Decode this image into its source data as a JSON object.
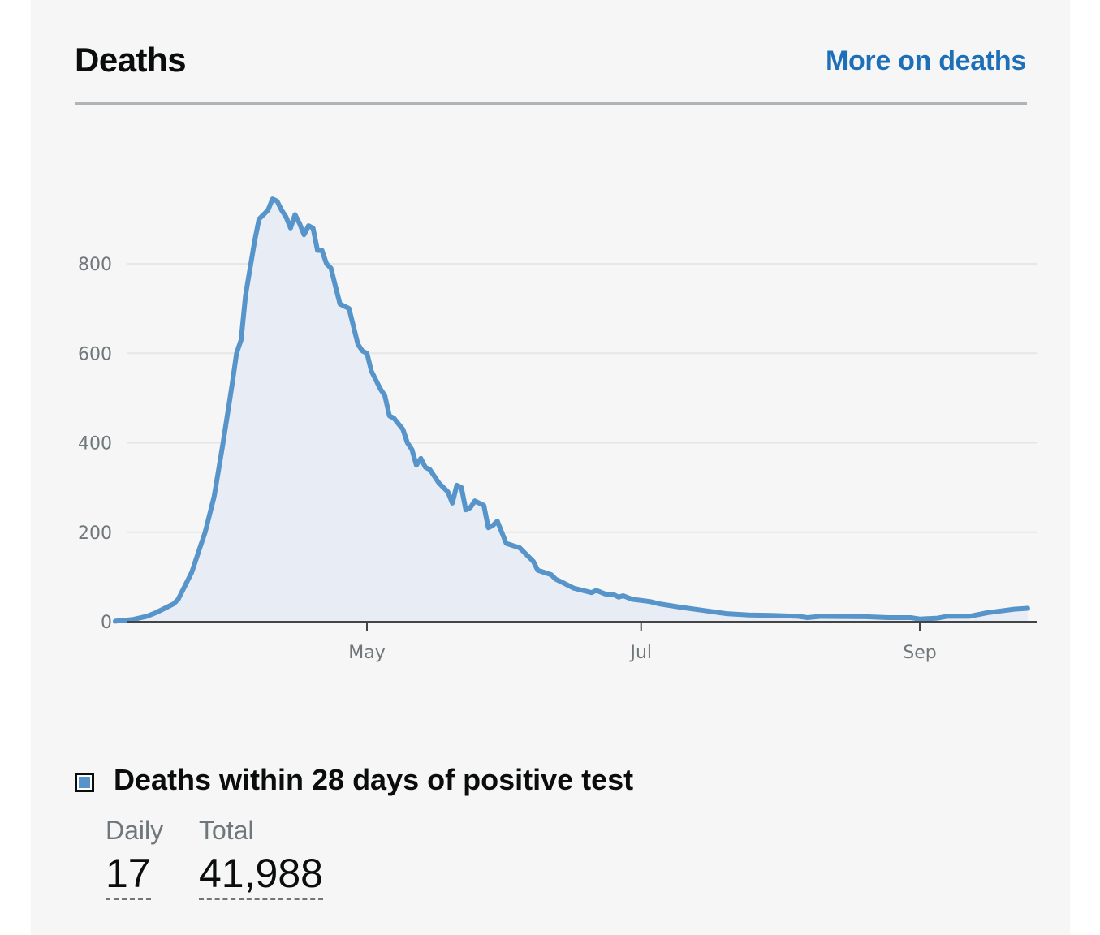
{
  "header": {
    "title": "Deaths",
    "more_link": "More on deaths"
  },
  "colors": {
    "line": "#5694ca",
    "area": "#e8edf5",
    "link": "#1d70b8",
    "text": "#0b0c0c",
    "muted": "#6f777b"
  },
  "chart_data": {
    "type": "area",
    "title": "",
    "xlabel": "",
    "ylabel": "",
    "ylim": [
      0,
      1000
    ],
    "yticks": [
      0,
      200,
      400,
      600,
      800
    ],
    "xticks": [
      {
        "label": "May",
        "date": "2020-05-01"
      },
      {
        "label": "Jul",
        "date": "2020-07-01"
      },
      {
        "label": "Sep",
        "date": "2020-09-01"
      }
    ],
    "grid": true,
    "series": [
      {
        "name": "Deaths within 28 days of positive test",
        "points": [
          [
            "2020-03-06",
            1
          ],
          [
            "2020-03-10",
            5
          ],
          [
            "2020-03-13",
            12
          ],
          [
            "2020-03-15",
            20
          ],
          [
            "2020-03-17",
            30
          ],
          [
            "2020-03-19",
            40
          ],
          [
            "2020-03-20",
            50
          ],
          [
            "2020-03-23",
            110
          ],
          [
            "2020-03-25",
            170
          ],
          [
            "2020-03-26",
            200
          ],
          [
            "2020-03-28",
            280
          ],
          [
            "2020-03-30",
            400
          ],
          [
            "2020-04-01",
            530
          ],
          [
            "2020-04-02",
            600
          ],
          [
            "2020-04-03",
            630
          ],
          [
            "2020-04-04",
            730
          ],
          [
            "2020-04-06",
            850
          ],
          [
            "2020-04-07",
            900
          ],
          [
            "2020-04-08",
            910
          ],
          [
            "2020-04-09",
            920
          ],
          [
            "2020-04-10",
            945
          ],
          [
            "2020-04-11",
            940
          ],
          [
            "2020-04-12",
            920
          ],
          [
            "2020-04-13",
            905
          ],
          [
            "2020-04-14",
            880
          ],
          [
            "2020-04-15",
            910
          ],
          [
            "2020-04-16",
            890
          ],
          [
            "2020-04-17",
            865
          ],
          [
            "2020-04-18",
            885
          ],
          [
            "2020-04-19",
            880
          ],
          [
            "2020-04-20",
            830
          ],
          [
            "2020-04-21",
            830
          ],
          [
            "2020-04-22",
            800
          ],
          [
            "2020-04-23",
            790
          ],
          [
            "2020-04-24",
            750
          ],
          [
            "2020-04-25",
            710
          ],
          [
            "2020-04-27",
            700
          ],
          [
            "2020-04-29",
            620
          ],
          [
            "2020-04-30",
            605
          ],
          [
            "2020-05-01",
            600
          ],
          [
            "2020-05-02",
            560
          ],
          [
            "2020-05-04",
            520
          ],
          [
            "2020-05-05",
            505
          ],
          [
            "2020-05-06",
            460
          ],
          [
            "2020-05-07",
            455
          ],
          [
            "2020-05-09",
            430
          ],
          [
            "2020-05-10",
            400
          ],
          [
            "2020-05-11",
            385
          ],
          [
            "2020-05-12",
            350
          ],
          [
            "2020-05-13",
            365
          ],
          [
            "2020-05-14",
            345
          ],
          [
            "2020-05-15",
            340
          ],
          [
            "2020-05-17",
            310
          ],
          [
            "2020-05-19",
            290
          ],
          [
            "2020-05-20",
            265
          ],
          [
            "2020-05-21",
            305
          ],
          [
            "2020-05-22",
            300
          ],
          [
            "2020-05-23",
            250
          ],
          [
            "2020-05-24",
            255
          ],
          [
            "2020-05-25",
            270
          ],
          [
            "2020-05-26",
            265
          ],
          [
            "2020-05-27",
            260
          ],
          [
            "2020-05-28",
            210
          ],
          [
            "2020-05-29",
            215
          ],
          [
            "2020-05-30",
            225
          ],
          [
            "2020-05-31",
            200
          ],
          [
            "2020-06-01",
            175
          ],
          [
            "2020-06-04",
            165
          ],
          [
            "2020-06-06",
            145
          ],
          [
            "2020-06-07",
            135
          ],
          [
            "2020-06-08",
            115
          ],
          [
            "2020-06-11",
            105
          ],
          [
            "2020-06-12",
            95
          ],
          [
            "2020-06-14",
            85
          ],
          [
            "2020-06-16",
            75
          ],
          [
            "2020-06-18",
            70
          ],
          [
            "2020-06-20",
            65
          ],
          [
            "2020-06-21",
            70
          ],
          [
            "2020-06-23",
            62
          ],
          [
            "2020-06-25",
            60
          ],
          [
            "2020-06-26",
            55
          ],
          [
            "2020-06-27",
            58
          ],
          [
            "2020-06-29",
            50
          ],
          [
            "2020-07-03",
            45
          ],
          [
            "2020-07-05",
            40
          ],
          [
            "2020-07-10",
            32
          ],
          [
            "2020-07-15",
            25
          ],
          [
            "2020-07-20",
            18
          ],
          [
            "2020-07-25",
            15
          ],
          [
            "2020-07-30",
            14
          ],
          [
            "2020-08-05",
            12
          ],
          [
            "2020-08-07",
            9
          ],
          [
            "2020-08-10",
            12
          ],
          [
            "2020-08-20",
            11
          ],
          [
            "2020-08-25",
            9
          ],
          [
            "2020-08-30",
            9
          ],
          [
            "2020-09-01",
            6
          ],
          [
            "2020-09-05",
            8
          ],
          [
            "2020-09-07",
            12
          ],
          [
            "2020-09-12",
            12
          ],
          [
            "2020-09-16",
            20
          ],
          [
            "2020-09-19",
            24
          ],
          [
            "2020-09-22",
            28
          ],
          [
            "2020-09-25",
            30
          ]
        ]
      }
    ]
  },
  "legend": {
    "label": "Deaths within 28 days of positive test"
  },
  "stats": {
    "daily_label": "Daily",
    "daily_value": "17",
    "total_label": "Total",
    "total_value": "41,988"
  }
}
